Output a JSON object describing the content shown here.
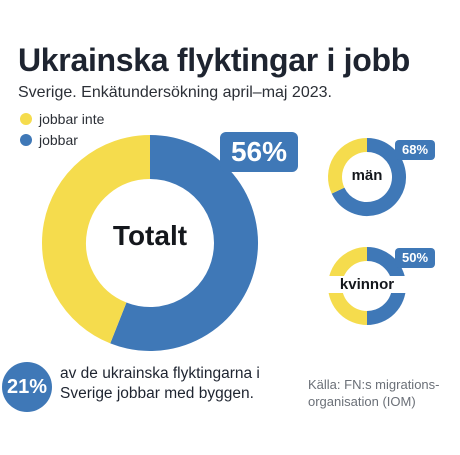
{
  "header": {
    "title": "Ukrainska flyktingar i jobb",
    "subtitle": "Sverige. Enkätundersökning april–maj 2023."
  },
  "legend": [
    {
      "label": "jobbar inte",
      "color": "#f5dc4d"
    },
    {
      "label": "jobbar",
      "color": "#3f78b7"
    }
  ],
  "colors": {
    "not_working": "#f5dc4d",
    "working": "#3f78b7"
  },
  "chart_data": [
    {
      "type": "pie",
      "label": "Totalt",
      "value_label": "56%",
      "categories": [
        "jobbar",
        "jobbar inte"
      ],
      "values": [
        56,
        44
      ]
    },
    {
      "type": "pie",
      "label": "män",
      "value_label": "68%",
      "categories": [
        "jobbar",
        "jobbar inte"
      ],
      "values": [
        68,
        32
      ]
    },
    {
      "type": "pie",
      "label": "kvinnor",
      "value_label": "50%",
      "categories": [
        "jobbar",
        "jobbar inte"
      ],
      "values": [
        50,
        50
      ]
    }
  ],
  "stat": {
    "value": "21%",
    "text": "av de ukrainska flyktingarna i Sverige jobbar med byggen."
  },
  "source": "Källa: FN:s migrations-organisation (IOM)"
}
